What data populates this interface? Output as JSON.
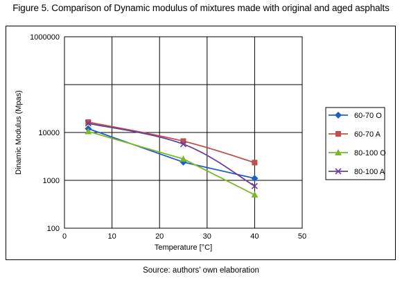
{
  "figure_title": "Figure 5. Comparison of Dynamic modulus of mixtures made with original and aged asphalts",
  "source_note": "Source: authors' own elaboration",
  "chart_data": {
    "type": "line",
    "xlabel": "Temperature [°C]",
    "ylabel": "Dinamic Modulus (Mpas)",
    "xlim": [
      0,
      50
    ],
    "ylim": [
      100,
      1000000
    ],
    "yscale": "log",
    "xticks": [
      0,
      10,
      20,
      30,
      40,
      50
    ],
    "yticks": [
      100,
      1000,
      10000,
      1000000
    ],
    "ytick_labels": [
      "100",
      "1000",
      "10000",
      "1000000"
    ],
    "grid": true,
    "legend_position": "right",
    "series": [
      {
        "name": "60-70 O",
        "color": "#1f5fc4",
        "marker": "diamond",
        "smooth": false,
        "points": [
          [
            5,
            12000
          ],
          [
            25,
            2400
          ],
          [
            40,
            1100
          ]
        ]
      },
      {
        "name": "60-70 A",
        "color": "#c0504d",
        "marker": "square",
        "smooth": true,
        "points": [
          [
            5,
            16500
          ],
          [
            25,
            6600
          ],
          [
            40,
            2350
          ]
        ]
      },
      {
        "name": "80-100 O",
        "color": "#7ab828",
        "marker": "triangle",
        "smooth": false,
        "points": [
          [
            5,
            10500
          ],
          [
            25,
            2800
          ],
          [
            40,
            500
          ]
        ]
      },
      {
        "name": "80-100 A",
        "color": "#6a3d9a",
        "marker": "x",
        "smooth": true,
        "points": [
          [
            5,
            15500
          ],
          [
            25,
            5700
          ],
          [
            40,
            760
          ]
        ]
      }
    ]
  }
}
